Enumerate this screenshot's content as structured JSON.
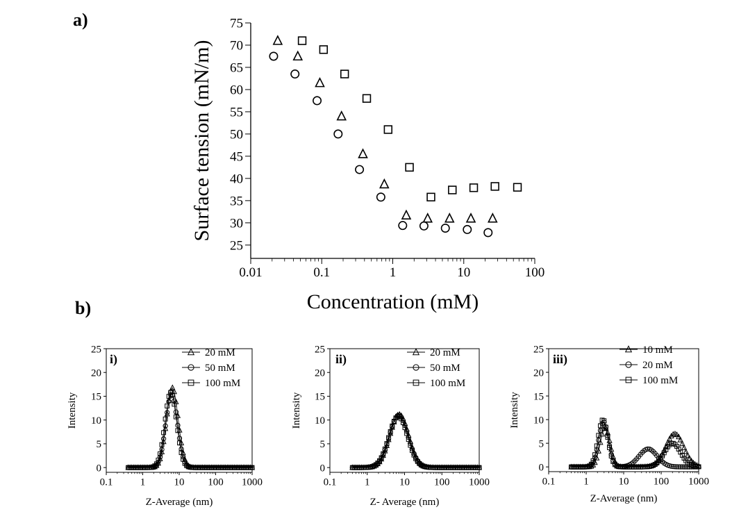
{
  "chart_data": [
    {
      "id": "a",
      "type": "scatter",
      "panel_label": "a)",
      "xlabel": "Concentration (mM)",
      "ylabel": "Surface tension (mN/m)",
      "xscale": "log",
      "xlim": [
        0.01,
        100
      ],
      "ylim": [
        22,
        75
      ],
      "xticks": [
        "0.01",
        "0.1",
        "1",
        "10",
        "100"
      ],
      "yticks": [
        "25",
        "30",
        "35",
        "40",
        "45",
        "50",
        "55",
        "60",
        "65",
        "70",
        "75"
      ],
      "grid": false,
      "legend": "none",
      "series": [
        {
          "marker": "triangle",
          "points": [
            [
              0.024,
              71
            ],
            [
              0.046,
              67.5
            ],
            [
              0.094,
              61.5
            ],
            [
              0.19,
              54
            ],
            [
              0.38,
              45.5
            ],
            [
              0.76,
              38.7
            ],
            [
              1.55,
              31.7
            ],
            [
              3.1,
              31
            ],
            [
              6.3,
              31
            ],
            [
              12.6,
              31
            ],
            [
              25.5,
              31
            ]
          ]
        },
        {
          "marker": "circle",
          "points": [
            [
              0.021,
              67.5
            ],
            [
              0.042,
              63.5
            ],
            [
              0.086,
              57.5
            ],
            [
              0.17,
              50
            ],
            [
              0.34,
              42
            ],
            [
              0.68,
              35.8
            ],
            [
              1.38,
              29.4
            ],
            [
              2.75,
              29.3
            ],
            [
              5.5,
              28.8
            ],
            [
              11.2,
              28.5
            ],
            [
              22,
              27.8
            ]
          ]
        },
        {
          "marker": "square",
          "points": [
            [
              0.053,
              71
            ],
            [
              0.106,
              69
            ],
            [
              0.21,
              63.5
            ],
            [
              0.43,
              58
            ],
            [
              0.86,
              51
            ],
            [
              1.72,
              42.5
            ],
            [
              3.45,
              35.8
            ],
            [
              6.9,
              37.4
            ],
            [
              13.8,
              37.9
            ],
            [
              27.5,
              38.2
            ],
            [
              57,
              38
            ]
          ]
        }
      ]
    },
    {
      "id": "b-i",
      "type": "line",
      "panel_label": "i)",
      "xlabel": "Z-Average (nm)",
      "ylabel": "Intensity",
      "xscale": "log",
      "xlim": [
        0.1,
        1000
      ],
      "ylim": [
        -1,
        25
      ],
      "xticks": [
        "0.1",
        "1",
        "10",
        "100",
        "1000"
      ],
      "yticks": [
        "0",
        "5",
        "10",
        "15",
        "20",
        "25"
      ],
      "legend": "top-right",
      "series": [
        {
          "name": "20 mM",
          "marker": "triangle",
          "peaks": [
            {
              "center_nm": 6.5,
              "height": 16.8,
              "width_decades": 0.16
            }
          ]
        },
        {
          "name": "50 mM",
          "marker": "circle",
          "peaks": [
            {
              "center_nm": 6.2,
              "height": 15.5,
              "width_decades": 0.16
            }
          ]
        },
        {
          "name": "100 mM",
          "marker": "square",
          "peaks": [
            {
              "center_nm": 5.9,
              "height": 15.8,
              "width_decades": 0.16
            }
          ]
        }
      ]
    },
    {
      "id": "b-ii",
      "type": "line",
      "panel_label": "ii)",
      "xlabel": "Z- Average (nm)",
      "ylabel": "Intensity",
      "xscale": "log",
      "xlim": [
        0.1,
        1000
      ],
      "ylim": [
        -1,
        25
      ],
      "xticks": [
        "0.1",
        "1",
        "10",
        "100",
        "1000"
      ],
      "yticks": [
        "0",
        "5",
        "10",
        "15",
        "20",
        "25"
      ],
      "legend": "top-right",
      "series": [
        {
          "name": "20 mM",
          "marker": "triangle",
          "peaks": [
            {
              "center_nm": 7.2,
              "height": 11.2,
              "width_decades": 0.25
            }
          ]
        },
        {
          "name": "50 mM",
          "marker": "circle",
          "peaks": [
            {
              "center_nm": 7.0,
              "height": 11.0,
              "width_decades": 0.25
            }
          ]
        },
        {
          "name": "100 mM",
          "marker": "square",
          "peaks": [
            {
              "center_nm": 6.8,
              "height": 10.8,
              "width_decades": 0.25
            }
          ]
        }
      ]
    },
    {
      "id": "b-iii",
      "type": "line",
      "panel_label": "iii)",
      "xlabel": "Z-Average (nm)",
      "ylabel": "Intensity",
      "xscale": "log",
      "xlim": [
        0.1,
        1000
      ],
      "ylim": [
        -1,
        25
      ],
      "xticks": [
        "0.1",
        "1",
        "10",
        "100",
        "1000"
      ],
      "yticks": [
        "0",
        "5",
        "10",
        "15",
        "20",
        "25"
      ],
      "legend": "top-right",
      "series": [
        {
          "name": "10 mM",
          "marker": "triangle",
          "peaks": [
            {
              "center_nm": 3.2,
              "height": 8.3,
              "width_decades": 0.13
            },
            {
              "center_nm": 230,
              "height": 7.0,
              "width_decades": 0.24
            }
          ]
        },
        {
          "name": "20 mM",
          "marker": "circle",
          "peaks": [
            {
              "center_nm": 2.9,
              "height": 9.5,
              "width_decades": 0.13
            },
            {
              "center_nm": 45,
              "height": 3.8,
              "width_decades": 0.24
            }
          ]
        },
        {
          "name": "100 mM",
          "marker": "square",
          "peaks": [
            {
              "center_nm": 2.8,
              "height": 10.0,
              "width_decades": 0.13
            },
            {
              "center_nm": 200,
              "height": 5.0,
              "width_decades": 0.22
            }
          ]
        }
      ]
    }
  ],
  "section_labels": {
    "b": "b)"
  }
}
